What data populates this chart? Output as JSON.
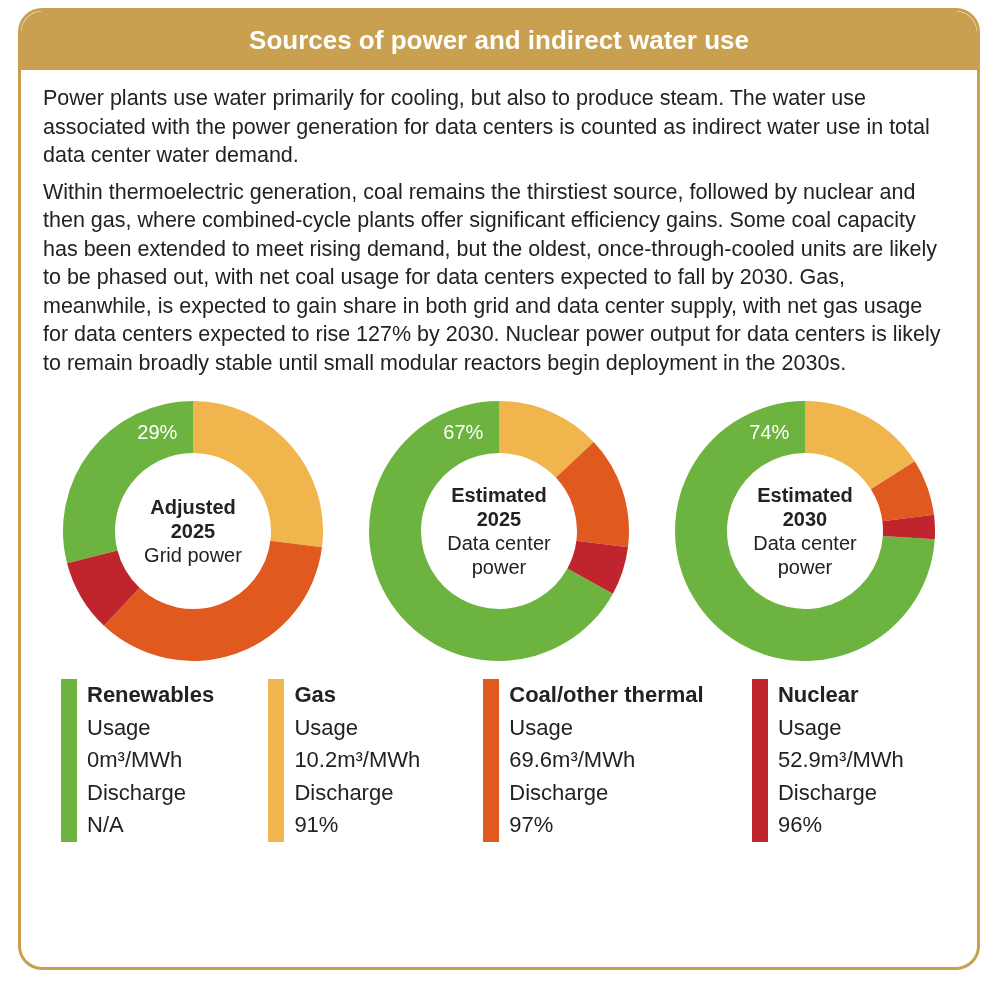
{
  "chart_data": [
    {
      "type": "other",
      "title": "Sources of power and indirect water use",
      "annotations": [
        "Power plants use water primarily for cooling, but also to produce steam. The water use associated with the power generation for data centers is counted as indirect water use in total data center water demand.",
        "Within thermoelectric generation, coal remains the thirstiest source, followed by nuclear and then gas, where combined-cycle plants offer significant efficiency gains. Some coal capacity has been extended to meet rising demand, but the oldest, once-through-cooled units are likely to be phased out, with net coal usage for data centers expected to fall by 2030. Gas, meanwhile, is expected to gain share in both grid and data center supply, with net gas usage for data centers expected to rise 127% by 2030. Nuclear power output for data centers is likely to remain broadly stable until small modular reactors begin deployment in the 2030s."
      ]
    },
    {
      "type": "donut",
      "title": "Adjusted 2025",
      "subtitle": "Grid power",
      "categories": [
        "Renewables",
        "Gas",
        "Coal/other thermal",
        "Nuclear"
      ],
      "values": [
        29,
        27,
        35,
        9
      ],
      "colors": [
        "#6cb33f",
        "#f0b54c",
        "#e05a20",
        "#c0242c"
      ],
      "value_labels": [
        "29%",
        null,
        null,
        null
      ],
      "legend": "bottom",
      "annotations": [
        "Usage",
        "0m³/MWh",
        "Discharge",
        "N/A",
        "Usage",
        "10.2m³/MWh",
        "Discharge",
        "91%",
        "Usage",
        "69.6m³/MWh",
        "Discharge",
        "97%",
        "Usage",
        "52.9m³/MWh",
        "Discharge",
        "96%"
      ]
    },
    {
      "type": "donut",
      "title": "Estimated 2025",
      "subtitle": "Data center power",
      "categories": [
        null,
        null,
        null,
        null
      ],
      "values": [
        67,
        13,
        14,
        6
      ],
      "colors": [
        "#6cb33f",
        "#f0b54c",
        "#e05a20",
        "#c0242c"
      ],
      "value_labels": [
        "67%",
        null,
        null,
        null
      ]
    },
    {
      "type": "donut",
      "title": "Estimated 2030",
      "subtitle": "Data center power",
      "categories": [
        null,
        null,
        null,
        null
      ],
      "values": [
        74,
        16,
        7,
        3
      ],
      "colors": [
        "#6cb33f",
        "#f0b54c",
        "#e05a20",
        "#c0242c"
      ],
      "value_labels": [
        "74%",
        null,
        null,
        null
      ]
    }
  ]
}
